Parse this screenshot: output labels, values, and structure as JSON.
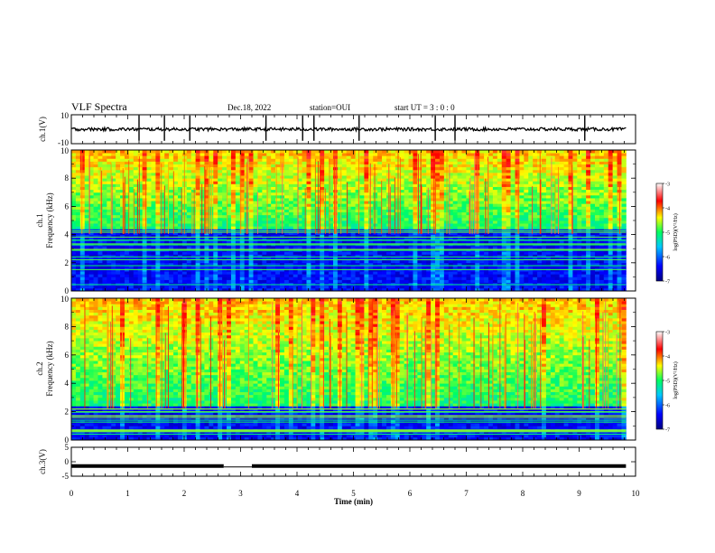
{
  "header": {
    "title": "VLF Spectra",
    "date": "Dec.18, 2022",
    "station": "station=OUI",
    "start": "start  UT =   3 : 0  : 0"
  },
  "chart_data": [
    {
      "type": "line",
      "panel": "ch1-waveform",
      "ylabel": "ch.1(V)",
      "ylim": [
        -10,
        10
      ],
      "y_ticks": [
        "10",
        "-10"
      ],
      "x_range_min": [
        0,
        9.83
      ],
      "baseline_v": 0,
      "spikes_min": [
        1.2,
        1.65,
        2.1,
        3.45,
        4.1,
        4.3,
        5.1,
        6.45,
        6.8,
        9.1
      ]
    },
    {
      "type": "heatmap",
      "panel": "ch1-spectrogram",
      "ylabel_line1": "ch.1",
      "ylabel_line2": "Frequency (kHz)",
      "ylim": [
        0,
        10
      ],
      "y_ticks": [
        "0",
        "2",
        "4",
        "6",
        "8",
        "10"
      ],
      "colorbar": {
        "label": "log(PSD)(V²/Hz)",
        "ticks": [
          "-3",
          "-4",
          "-5",
          "-6",
          "-7"
        ],
        "range": [
          -7,
          -3
        ]
      },
      "low_band_edge_khz": 4.5
    },
    {
      "type": "heatmap",
      "panel": "ch2-spectrogram",
      "ylabel_line1": "ch.2",
      "ylabel_line2": "Frequency (kHz)",
      "ylim": [
        0,
        10
      ],
      "y_ticks": [
        "0",
        "2",
        "4",
        "6",
        "8",
        "10"
      ],
      "colorbar": {
        "label": "log(PSD)(V²/Hz)",
        "ticks": [
          "-3",
          "-4",
          "-5",
          "-6",
          "-7"
        ],
        "range": [
          -7,
          -3
        ]
      },
      "low_band_edge_khz": 2.5
    },
    {
      "type": "line",
      "panel": "ch3-level",
      "ylabel": "ch.3(V)",
      "ylim": [
        -5,
        5
      ],
      "y_ticks": [
        "5",
        "0",
        "-5"
      ],
      "level_v": -1.5,
      "gap_min": [
        2.7,
        3.2
      ]
    }
  ],
  "x_axis": {
    "label": "Time  (min)",
    "range": [
      0,
      10
    ],
    "ticks": [
      "0",
      "1",
      "2",
      "3",
      "4",
      "5",
      "6",
      "7",
      "8",
      "9",
      "10"
    ]
  }
}
